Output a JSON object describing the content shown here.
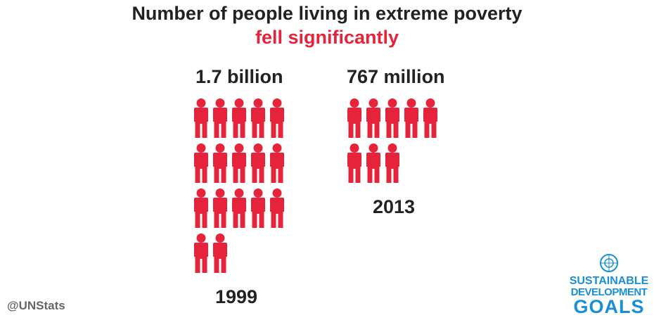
{
  "title": {
    "line1": "Number of people living in extreme poverty",
    "line2": "fell significantly"
  },
  "colors": {
    "accent": "#e5243b",
    "text": "#222222",
    "muted": "#666666",
    "sdg_blue": "#1a8fd6"
  },
  "chart_data": {
    "type": "pictogram",
    "unit": "one icon per 100 million people",
    "categories": [
      "1999",
      "2013"
    ],
    "values": [
      17,
      7.67
    ],
    "value_labels": [
      "1.7 billion",
      "767 million"
    ],
    "icon_counts": [
      17,
      8
    ],
    "icons_per_row": 5,
    "series": [
      {
        "year": "1999",
        "value_label": "1.7 billion",
        "icon_count": 17
      },
      {
        "year": "2013",
        "value_label": "767 million",
        "icon_count": 8
      }
    ]
  },
  "footer": {
    "handle": "@UNStats",
    "logo_line1": "SUSTAINABLE",
    "logo_line2": "DEVELOPMENT",
    "logo_line3": "GOALS"
  }
}
